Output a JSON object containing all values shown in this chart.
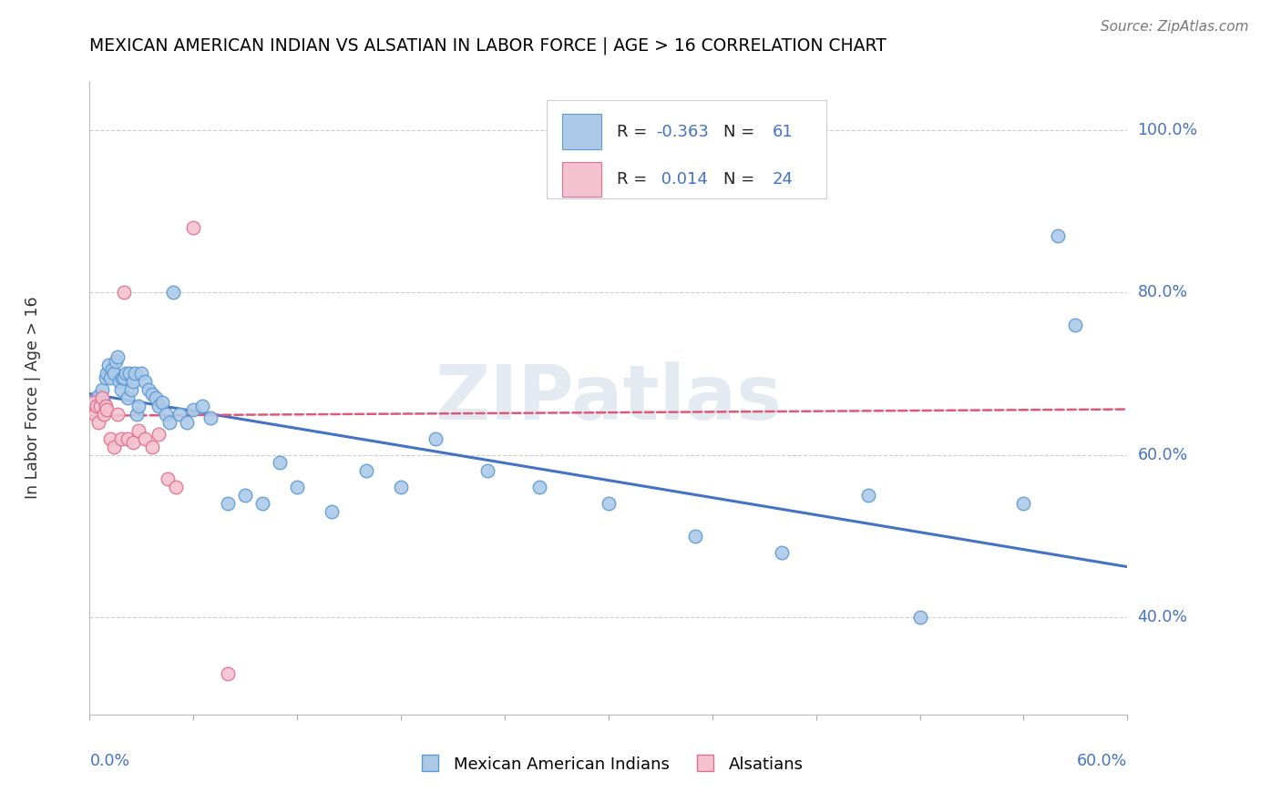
{
  "title": "MEXICAN AMERICAN INDIAN VS ALSATIAN IN LABOR FORCE | AGE > 16 CORRELATION CHART",
  "source": "Source: ZipAtlas.com",
  "ylabel": "In Labor Force | Age > 16",
  "ytick_labels": [
    "40.0%",
    "60.0%",
    "80.0%",
    "100.0%"
  ],
  "ytick_values": [
    0.4,
    0.6,
    0.8,
    1.0
  ],
  "xlim": [
    0.0,
    0.6
  ],
  "ylim": [
    0.28,
    1.06
  ],
  "blue_R": "-0.363",
  "blue_N": "61",
  "pink_R": "0.014",
  "pink_N": "24",
  "blue_color": "#adc9e8",
  "blue_edge_color": "#5b9bd5",
  "pink_color": "#f4c2d0",
  "pink_edge_color": "#e07090",
  "blue_line_color": "#4472c4",
  "pink_line_color": "#e05878",
  "watermark": "ZIPatlas",
  "blue_scatter_x": [
    0.002,
    0.003,
    0.004,
    0.005,
    0.006,
    0.007,
    0.008,
    0.009,
    0.01,
    0.011,
    0.012,
    0.013,
    0.014,
    0.015,
    0.016,
    0.017,
    0.018,
    0.019,
    0.02,
    0.021,
    0.022,
    0.023,
    0.024,
    0.025,
    0.026,
    0.027,
    0.028,
    0.03,
    0.032,
    0.034,
    0.036,
    0.038,
    0.04,
    0.042,
    0.044,
    0.046,
    0.048,
    0.052,
    0.056,
    0.06,
    0.065,
    0.07,
    0.08,
    0.09,
    0.1,
    0.11,
    0.12,
    0.14,
    0.16,
    0.18,
    0.2,
    0.23,
    0.26,
    0.3,
    0.35,
    0.4,
    0.45,
    0.48,
    0.54,
    0.56,
    0.57
  ],
  "blue_scatter_y": [
    0.665,
    0.668,
    0.67,
    0.672,
    0.66,
    0.68,
    0.665,
    0.695,
    0.7,
    0.71,
    0.695,
    0.705,
    0.7,
    0.715,
    0.72,
    0.69,
    0.68,
    0.695,
    0.695,
    0.7,
    0.67,
    0.7,
    0.68,
    0.69,
    0.7,
    0.65,
    0.66,
    0.7,
    0.69,
    0.68,
    0.675,
    0.67,
    0.66,
    0.665,
    0.65,
    0.64,
    0.8,
    0.65,
    0.64,
    0.655,
    0.66,
    0.645,
    0.54,
    0.55,
    0.54,
    0.59,
    0.56,
    0.53,
    0.58,
    0.56,
    0.62,
    0.58,
    0.56,
    0.54,
    0.5,
    0.48,
    0.55,
    0.4,
    0.54,
    0.87,
    0.76
  ],
  "pink_scatter_x": [
    0.002,
    0.003,
    0.004,
    0.005,
    0.006,
    0.007,
    0.008,
    0.009,
    0.01,
    0.012,
    0.014,
    0.016,
    0.018,
    0.02,
    0.022,
    0.025,
    0.028,
    0.032,
    0.036,
    0.04,
    0.045,
    0.05,
    0.06,
    0.08
  ],
  "pink_scatter_y": [
    0.665,
    0.65,
    0.66,
    0.64,
    0.66,
    0.67,
    0.65,
    0.66,
    0.655,
    0.62,
    0.61,
    0.65,
    0.62,
    0.8,
    0.62,
    0.615,
    0.63,
    0.62,
    0.61,
    0.625,
    0.57,
    0.56,
    0.88,
    0.33
  ],
  "blue_trend_x0": 0.0,
  "blue_trend_x1": 0.6,
  "blue_trend_y0": 0.675,
  "blue_trend_y1": 0.462,
  "pink_trend_x0": 0.0,
  "pink_trend_x1": 0.6,
  "pink_trend_y0": 0.648,
  "pink_trend_y1": 0.656
}
